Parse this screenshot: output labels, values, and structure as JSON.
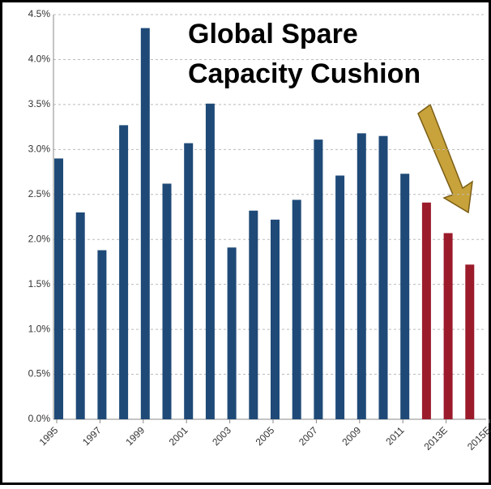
{
  "chart_data": {
    "type": "bar",
    "title": [
      "Global Spare",
      "Capacity Cushion"
    ],
    "x_tick_labels": [
      "1995",
      "1997",
      "1999",
      "2001",
      "2003",
      "2005",
      "2007",
      "2009",
      "2011",
      "2013E",
      "2015E"
    ],
    "values": [
      2.9,
      2.3,
      1.88,
      3.27,
      4.35,
      2.62,
      3.07,
      3.51,
      1.91,
      2.32,
      2.22,
      2.44,
      3.11,
      2.71,
      3.18,
      3.15,
      2.73,
      2.41,
      2.07,
      1.72
    ],
    "colors": [
      "#1f4a78",
      "#1f4a78",
      "#1f4a78",
      "#1f4a78",
      "#1f4a78",
      "#1f4a78",
      "#1f4a78",
      "#1f4a78",
      "#1f4a78",
      "#1f4a78",
      "#1f4a78",
      "#1f4a78",
      "#1f4a78",
      "#1f4a78",
      "#1f4a78",
      "#1f4a78",
      "#1f4a78",
      "#9b1b2b",
      "#9b1b2b",
      "#9b1b2b"
    ],
    "ylim": [
      0,
      4.5
    ],
    "yticks": [
      {
        "value": 0,
        "label": "0.0%"
      },
      {
        "value": 0.5,
        "label": "0.5%"
      },
      {
        "value": 1,
        "label": "1.0%"
      },
      {
        "value": 1.5,
        "label": "1.5%"
      },
      {
        "value": 2,
        "label": "2.0%"
      },
      {
        "value": 2.5,
        "label": "2.5%"
      },
      {
        "value": 3,
        "label": "3.0%"
      },
      {
        "value": 3.5,
        "label": "3.5%"
      },
      {
        "value": 4,
        "label": "4.0%"
      },
      {
        "value": 4.5,
        "label": "4.5%"
      }
    ],
    "grid": true
  }
}
